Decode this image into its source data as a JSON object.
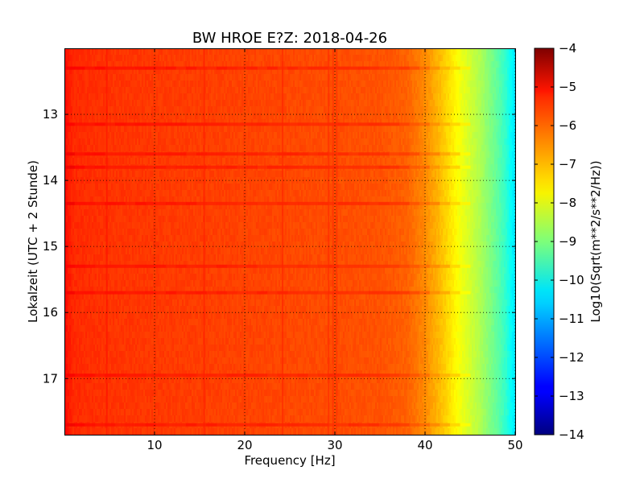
{
  "chart_data": {
    "type": "heatmap",
    "title": "BW HROE E?Z: 2018-04-26",
    "xlabel": "Frequency [Hz]",
    "ylabel": "Lokalzeit (UTC + 2 Stunde)",
    "xlim": [
      0,
      50
    ],
    "ylim": [
      17.85,
      12.0
    ],
    "x_ticks": [
      10,
      20,
      30,
      40,
      50
    ],
    "y_ticks": [
      13,
      14,
      15,
      16,
      17
    ],
    "grid": true,
    "colorbar": {
      "label": "Log10(Sqrt(m**2/s**2/Hz))",
      "range": [
        -14,
        -4
      ],
      "ticks": [
        -4,
        -5,
        -6,
        -7,
        -8,
        -9,
        -10,
        -11,
        -12,
        -13,
        -14
      ],
      "colormap": "jet"
    },
    "level_profile": {
      "frequency_hz": [
        0,
        0.5,
        1,
        5,
        10,
        15,
        20,
        25,
        30,
        35,
        38,
        40,
        41,
        42,
        43,
        44,
        45,
        46,
        47,
        48,
        49,
        49.5,
        50
      ],
      "log10_amplitude": [
        -5.3,
        -5.5,
        -5.65,
        -5.75,
        -5.8,
        -5.85,
        -5.9,
        -5.95,
        -6.0,
        -6.05,
        -6.2,
        -6.6,
        -6.9,
        -7.2,
        -7.55,
        -7.9,
        -8.2,
        -8.5,
        -8.9,
        -9.3,
        -9.8,
        -10.2,
        -10.5
      ]
    },
    "strong_bands_hour": [
      12.3,
      13.15,
      13.6,
      13.8,
      14.35,
      15.3,
      15.7,
      16.95,
      17.7
    ],
    "vertical_features_hz": [
      15.5,
      24.2,
      29.3,
      29.8,
      30.2,
      4.7
    ]
  }
}
